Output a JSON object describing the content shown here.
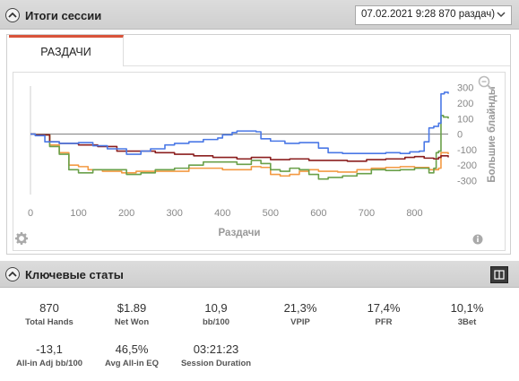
{
  "session_panel": {
    "title": "Итоги сессии",
    "session_select_value": "07.02.2021 9:28 870 раздач)",
    "tab_label": "РАЗДАЧИ"
  },
  "chart_data": {
    "type": "line",
    "xlabel": "Раздачи",
    "ylabel": "Большие блайнды",
    "xlim": [
      0,
      870
    ],
    "ylim": [
      -390,
      310
    ],
    "x_ticks": [
      0,
      100,
      200,
      300,
      400,
      500,
      600,
      700,
      800
    ],
    "y_ticks": [
      300,
      200,
      100,
      0,
      -100,
      -200,
      -300
    ],
    "series": [
      {
        "color": "#4a78e6",
        "points": [
          [
            0,
            0
          ],
          [
            10,
            -10
          ],
          [
            30,
            -50
          ],
          [
            60,
            -60
          ],
          [
            100,
            -55
          ],
          [
            130,
            -75
          ],
          [
            160,
            -95
          ],
          [
            200,
            -130
          ],
          [
            230,
            -110
          ],
          [
            250,
            -95
          ],
          [
            280,
            -70
          ],
          [
            300,
            -60
          ],
          [
            330,
            -50
          ],
          [
            360,
            -35
          ],
          [
            390,
            -25
          ],
          [
            400,
            -5
          ],
          [
            420,
            10
          ],
          [
            430,
            20
          ],
          [
            450,
            20
          ],
          [
            470,
            15
          ],
          [
            480,
            -30
          ],
          [
            500,
            -45
          ],
          [
            530,
            -60
          ],
          [
            560,
            -55
          ],
          [
            600,
            -90
          ],
          [
            620,
            -120
          ],
          [
            650,
            -125
          ],
          [
            700,
            -125
          ],
          [
            740,
            -120
          ],
          [
            770,
            -125
          ],
          [
            790,
            -115
          ],
          [
            810,
            -110
          ],
          [
            820,
            -50
          ],
          [
            830,
            40
          ],
          [
            840,
            50
          ],
          [
            850,
            70
          ],
          [
            855,
            260
          ],
          [
            862,
            270
          ],
          [
            870,
            260
          ]
        ]
      },
      {
        "color": "#f39a43",
        "points": [
          [
            0,
            0
          ],
          [
            10,
            -5
          ],
          [
            40,
            -70
          ],
          [
            60,
            -120
          ],
          [
            80,
            -200
          ],
          [
            100,
            -210
          ],
          [
            120,
            -230
          ],
          [
            150,
            -240
          ],
          [
            190,
            -250
          ],
          [
            220,
            -240
          ],
          [
            250,
            -240
          ],
          [
            300,
            -240
          ],
          [
            330,
            -220
          ],
          [
            360,
            -220
          ],
          [
            400,
            -230
          ],
          [
            430,
            -230
          ],
          [
            460,
            -210
          ],
          [
            480,
            -215
          ],
          [
            500,
            -260
          ],
          [
            520,
            -270
          ],
          [
            540,
            -260
          ],
          [
            560,
            -240
          ],
          [
            580,
            -230
          ],
          [
            600,
            -240
          ],
          [
            640,
            -245
          ],
          [
            680,
            -230
          ],
          [
            710,
            -220
          ],
          [
            740,
            -215
          ],
          [
            770,
            -210
          ],
          [
            800,
            -215
          ],
          [
            830,
            -230
          ],
          [
            850,
            -220
          ],
          [
            855,
            -120
          ],
          [
            860,
            -120
          ],
          [
            870,
            -130
          ]
        ]
      },
      {
        "color": "#6aa04a",
        "points": [
          [
            0,
            0
          ],
          [
            10,
            -5
          ],
          [
            40,
            -80
          ],
          [
            60,
            -130
          ],
          [
            80,
            -230
          ],
          [
            100,
            -250
          ],
          [
            130,
            -230
          ],
          [
            160,
            -230
          ],
          [
            200,
            -260
          ],
          [
            230,
            -250
          ],
          [
            260,
            -230
          ],
          [
            300,
            -220
          ],
          [
            330,
            -200
          ],
          [
            360,
            -180
          ],
          [
            400,
            -180
          ],
          [
            430,
            -195
          ],
          [
            460,
            -170
          ],
          [
            480,
            -190
          ],
          [
            500,
            -230
          ],
          [
            520,
            -240
          ],
          [
            540,
            -220
          ],
          [
            560,
            -230
          ],
          [
            580,
            -260
          ],
          [
            600,
            -290
          ],
          [
            620,
            -280
          ],
          [
            650,
            -270
          ],
          [
            680,
            -255
          ],
          [
            710,
            -230
          ],
          [
            740,
            -235
          ],
          [
            770,
            -230
          ],
          [
            800,
            -220
          ],
          [
            830,
            -250
          ],
          [
            840,
            -220
          ],
          [
            845,
            -120
          ],
          [
            850,
            -110
          ],
          [
            855,
            120
          ],
          [
            860,
            110
          ],
          [
            870,
            100
          ]
        ]
      },
      {
        "color": "#8b1f1f",
        "points": [
          [
            0,
            0
          ],
          [
            10,
            -5
          ],
          [
            40,
            -50
          ],
          [
            60,
            -60
          ],
          [
            100,
            -70
          ],
          [
            140,
            -80
          ],
          [
            180,
            -110
          ],
          [
            220,
            -110
          ],
          [
            260,
            -120
          ],
          [
            300,
            -130
          ],
          [
            340,
            -140
          ],
          [
            380,
            -150
          ],
          [
            400,
            -150
          ],
          [
            430,
            -160
          ],
          [
            460,
            -150
          ],
          [
            500,
            -165
          ],
          [
            540,
            -160
          ],
          [
            580,
            -170
          ],
          [
            620,
            -170
          ],
          [
            660,
            -175
          ],
          [
            700,
            -165
          ],
          [
            740,
            -160
          ],
          [
            780,
            -150
          ],
          [
            800,
            -145
          ],
          [
            820,
            -155
          ],
          [
            840,
            -160
          ],
          [
            850,
            -150
          ],
          [
            855,
            -140
          ],
          [
            870,
            -150
          ]
        ]
      },
      {
        "color": "#8a8a8a",
        "points": [
          [
            0,
            0
          ],
          [
            870,
            0
          ]
        ]
      }
    ]
  },
  "key_stats": {
    "title": "Ключевые статы",
    "items": [
      {
        "value": "870",
        "label": "Total Hands"
      },
      {
        "value": "$1.89",
        "label": "Net Won"
      },
      {
        "value": "10,9",
        "label": "bb/100"
      },
      {
        "value": "21,3%",
        "label": "VPIP"
      },
      {
        "value": "17,4%",
        "label": "PFR"
      },
      {
        "value": "10,1%",
        "label": "3Bet"
      },
      {
        "value": "-13,1",
        "label": "All-in Adj bb/100"
      },
      {
        "value": "46,5%",
        "label": "Avg All-in EQ"
      },
      {
        "value": "03:21:23",
        "label": "Session Duration"
      }
    ]
  }
}
